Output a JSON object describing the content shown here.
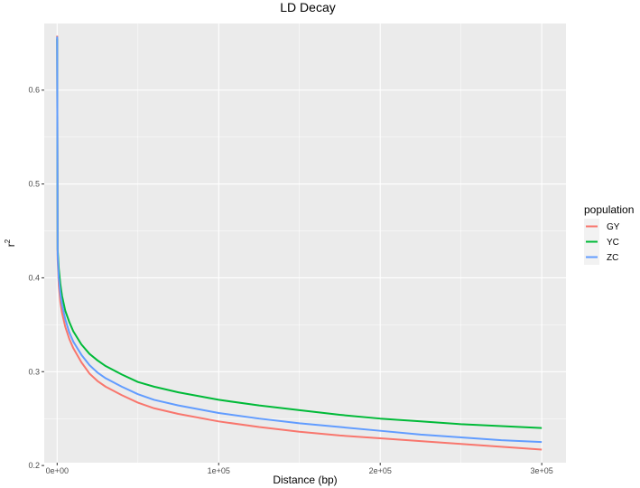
{
  "chart_data": {
    "type": "line",
    "title": "LD Decay",
    "xlabel": "Distance (bp)",
    "ylabel_base": "r",
    "ylabel_sup": "2",
    "xlim": [
      -8000,
      315000
    ],
    "ylim": [
      0.203,
      0.671
    ],
    "x_ticks": [
      0,
      100000,
      200000,
      300000
    ],
    "x_tick_labels": [
      "0e+00",
      "1e+05",
      "2e+05",
      "3e+05"
    ],
    "y_ticks": [
      0.2,
      0.3,
      0.4,
      0.5,
      0.6
    ],
    "y_tick_labels": [
      "0.2",
      "0.3",
      "0.4",
      "0.5",
      "0.6"
    ],
    "grid": true,
    "legend_position": "right",
    "legend_title": "population",
    "colors": {
      "panel": "#ebebeb",
      "grid": "#ffffff"
    },
    "series": [
      {
        "name": "GY",
        "color": "#f8766d",
        "x": [
          0,
          300,
          1000,
          2000,
          3000,
          5000,
          7500,
          10000,
          15000,
          20000,
          25000,
          30000,
          40000,
          50000,
          60000,
          75000,
          100000,
          125000,
          150000,
          175000,
          200000,
          225000,
          250000,
          275000,
          300000
        ],
        "y": [
          0.658,
          0.42,
          0.392,
          0.374,
          0.363,
          0.348,
          0.335,
          0.325,
          0.31,
          0.298,
          0.29,
          0.284,
          0.275,
          0.267,
          0.261,
          0.255,
          0.247,
          0.241,
          0.236,
          0.232,
          0.229,
          0.226,
          0.223,
          0.22,
          0.217
        ]
      },
      {
        "name": "YC",
        "color": "#00ba38",
        "x": [
          0,
          300,
          1000,
          2000,
          3000,
          5000,
          7500,
          10000,
          15000,
          20000,
          25000,
          30000,
          40000,
          50000,
          60000,
          75000,
          100000,
          125000,
          150000,
          175000,
          200000,
          225000,
          250000,
          275000,
          300000
        ],
        "y": [
          0.655,
          0.43,
          0.41,
          0.393,
          0.381,
          0.365,
          0.353,
          0.343,
          0.329,
          0.319,
          0.312,
          0.306,
          0.297,
          0.289,
          0.284,
          0.278,
          0.27,
          0.264,
          0.259,
          0.254,
          0.25,
          0.247,
          0.244,
          0.242,
          0.24
        ]
      },
      {
        "name": "ZC",
        "color": "#619cff",
        "x": [
          0,
          300,
          1000,
          2000,
          3000,
          5000,
          7500,
          10000,
          15000,
          20000,
          25000,
          30000,
          40000,
          50000,
          60000,
          75000,
          100000,
          125000,
          150000,
          175000,
          200000,
          225000,
          250000,
          275000,
          300000
        ],
        "y": [
          0.657,
          0.425,
          0.4,
          0.383,
          0.372,
          0.356,
          0.342,
          0.332,
          0.318,
          0.307,
          0.299,
          0.293,
          0.284,
          0.276,
          0.27,
          0.264,
          0.256,
          0.25,
          0.245,
          0.241,
          0.237,
          0.233,
          0.23,
          0.227,
          0.225
        ]
      }
    ]
  }
}
